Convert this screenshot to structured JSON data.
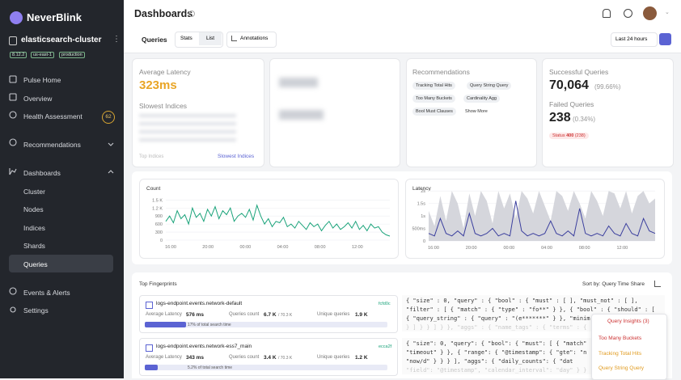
{
  "sidebar": {
    "brand": "NeverBlink",
    "cluster": "elasticsearch-cluster",
    "tags": [
      "8.12.2",
      "us-east-1",
      "production"
    ],
    "nav": [
      "Pulse Home",
      "Overview",
      "Health Assessment",
      "Recommendations",
      "Dashboards",
      "Cluster",
      "Nodes",
      "Indices",
      "Shards",
      "Queries",
      "Events & Alerts",
      "Settings"
    ],
    "health_badge": "62"
  },
  "header": {
    "title": "Dashboards",
    "tab": "Queries",
    "views": [
      "Stats",
      "List"
    ],
    "annotations": "Annotations",
    "time_range": "Last 24 hours"
  },
  "cards": {
    "latency": {
      "label": "Average Latency",
      "value": "323ms",
      "sub": "Slowest Indices",
      "footer": "Top Indices",
      "link": "Slowest Indices"
    },
    "recommendations": {
      "title": "Recommendations",
      "tags": [
        "Tracking Total Hits",
        "Query String Query",
        "Too Many Buckets",
        "Cardinality Agg",
        "Bool Must Clauses"
      ],
      "more": "Show More"
    },
    "queries": {
      "success_label": "Successful Queries",
      "success": "70,064",
      "success_pct": "(99.66%)",
      "failed_label": "Failed Queries",
      "failed": "238",
      "failed_pct": "(0.34%)",
      "status": [
        "Status",
        "400",
        "(238)"
      ]
    }
  },
  "charts": {
    "count": {
      "type": "line",
      "title": "Count",
      "color": "#1aa37a",
      "ylim": [
        0,
        1600
      ],
      "yticks": [
        0,
        300,
        600,
        900,
        {
          "value": 1200,
          "label": "1.2 K"
        },
        {
          "value": 1500,
          "label": "1.5 K"
        }
      ],
      "x_labels": [
        "16:00",
        "20:00",
        "00:00",
        "04:00",
        "08:00",
        "12:00"
      ],
      "values": [
        700,
        900,
        650,
        1100,
        800,
        950,
        600,
        1200,
        850,
        1000,
        700,
        1150,
        900,
        1250,
        800,
        1100,
        950,
        1200,
        700,
        900,
        1000,
        850,
        1150,
        750,
        1300,
        900,
        600,
        800,
        500,
        700,
        650,
        850,
        500,
        600,
        450,
        700,
        550,
        400,
        650,
        500,
        600,
        350,
        550,
        700,
        450,
        600,
        400,
        500,
        650,
        450,
        700,
        400,
        550,
        350,
        600,
        450,
        500,
        300,
        200,
        150
      ]
    },
    "latency": {
      "type": "line",
      "title": "Latency",
      "ylim": [
        0,
        2.2
      ],
      "yticks": [
        0,
        {
          "value": 0.5,
          "label": "500ms"
        },
        {
          "value": 1,
          "label": "1s"
        },
        {
          "value": 1.5,
          "label": "1.5s"
        },
        {
          "value": 2,
          "label": "2s"
        }
      ],
      "x_labels": [
        "16:00",
        "20:00",
        "00:00",
        "04:00",
        "08:00",
        "12:00"
      ],
      "series": [
        {
          "color": "#d5d6dc",
          "values": [
            1.2,
            0.6,
            1.8,
            0.8,
            2,
            1.5,
            0.5,
            1.9,
            1.0,
            2,
            1.6,
            0.7,
            2,
            1.3,
            1.9,
            0.9,
            2,
            1.7,
            1.1,
            2,
            1.4,
            0.8,
            2,
            1.8,
            1.2,
            2,
            1.5,
            0.9,
            2,
            1.6,
            1.0,
            2,
            1.9,
            1.3,
            2,
            1.1,
            1.8,
            2,
            1.5,
            1.7
          ]
        },
        {
          "color": "#3b3f9e",
          "values": [
            0.3,
            0.2,
            0.9,
            0.3,
            0.2,
            0.4,
            0.2,
            1.1,
            0.3,
            0.2,
            0.3,
            0.5,
            0.2,
            0.3,
            0.2,
            1.6,
            0.4,
            0.2,
            0.3,
            0.2,
            0.3,
            0.8,
            0.3,
            0.2,
            0.4,
            0.2,
            1.3,
            0.3,
            0.2,
            0.3,
            0.2,
            0.6,
            0.3,
            0.2,
            0.7,
            0.3,
            0.2,
            0.9,
            0.4,
            0.3
          ]
        }
      ]
    }
  },
  "fingerprints": {
    "title": "Top Fingerprints",
    "sort": "Sort by: Query Time Share",
    "labels": {
      "latency": "Average Latency",
      "count": "Queries count",
      "unique": "Unique queries"
    },
    "rows": [
      {
        "name": "logs-endpoint.events.network-default",
        "hash": "fcfd0c",
        "latency": "576 ms",
        "count": "6.7 K",
        "total": "/ 70.3 K",
        "unique": "1.9 K",
        "share": 17,
        "share_label": "17% of total search time",
        "query": [
          "{ \"size\" : 0, \"query\" : { \"bool\" : { \"must\" : [ ], \"must_not\" : [ ],",
          "\"filter\" : [ { \"match\" : { \"type\" : \"fo**\" } }, { \"bool\" : { \"should\" : [",
          "{ \"query_string\" : { \"query\" : \"(e*******\" } }, \"minim",
          "} ] } } ] } }, \"aggs\" : { \"name_tags\" : { \"terms\" : {"
        ]
      },
      {
        "name": "logs-endpoint.events.network-ess7_main",
        "hash": "ecca2f",
        "latency": "343 ms",
        "count": "3.4 K",
        "total": "/ 70.3 K",
        "unique": "1.2 K",
        "share": 5.2,
        "share_label": "5.2% of total search time",
        "query": [
          "{ \"size\": 0, \"query\": { \"bool\": { \"must\": [ { \"match\"",
          "\"timeout\" } }, { \"range\": { \"@timestamp\": { \"gte\": \"n",
          "\"now/d\" } } } ], \"aggs\": { \"daily_counts\": { \"dat",
          "\"field\": \"@timestamp\", \"calendar_interval\": \"day\" } }"
        ]
      }
    ],
    "insights": {
      "title": "Query Insights (3)",
      "items": [
        "Too Many Buckets",
        "Tracking Total Hits",
        "Query String Query"
      ]
    }
  }
}
